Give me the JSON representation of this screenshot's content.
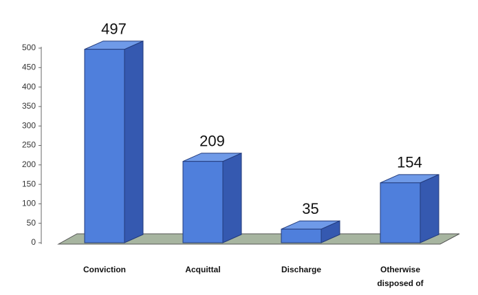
{
  "chart_data": {
    "type": "bar3d",
    "categories": [
      "Conviction",
      "Acquittal",
      "Discharge",
      "Otherwise disposed of"
    ],
    "values": [
      497,
      209,
      35,
      154
    ],
    "color": "#4f7fdc",
    "ylim": [
      0,
      500
    ],
    "yticks": [
      0,
      50,
      100,
      150,
      200,
      250,
      300,
      350,
      400,
      450,
      500
    ],
    "grid": false
  }
}
